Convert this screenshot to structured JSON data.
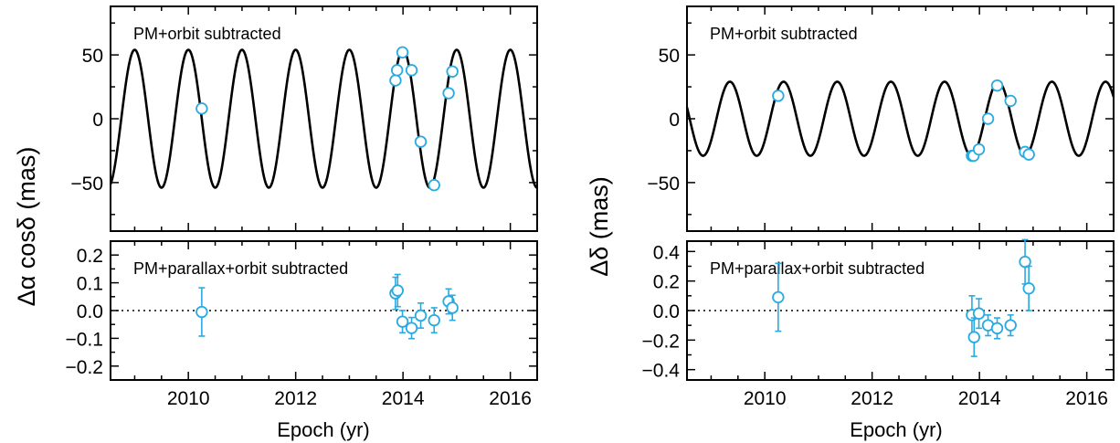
{
  "figure": {
    "left": {
      "ylabel": "Δα cosδ (mas)",
      "xlabel": "Epoch (yr)"
    },
    "right": {
      "ylabel": "Δδ (mas)",
      "xlabel": "Epoch (yr)"
    }
  },
  "chart_data": [
    {
      "type": "line",
      "panel": "left-top",
      "annotation": "PM+orbit subtracted",
      "xlim": [
        2008.55,
        2016.5
      ],
      "ylim": [
        -88,
        88
      ],
      "xticks": [
        2010,
        2012,
        2014,
        2016
      ],
      "yticks": [
        -50,
        0,
        50
      ],
      "ytick_labels": [
        "−50",
        "0",
        "50"
      ],
      "model": {
        "amplitude": 54,
        "period": 1.0,
        "phase_peak": 2009.0
      },
      "series": [
        {
          "kind": "points",
          "marker": "open-circle",
          "color": "#29aae1",
          "x": [
            2010.25,
            2013.86,
            2013.89,
            2013.99,
            2014.16,
            2014.33,
            2014.58,
            2014.85,
            2014.92
          ],
          "y": [
            8,
            30,
            38,
            52,
            38,
            -18,
            -52,
            20,
            37
          ]
        }
      ]
    },
    {
      "type": "scatter",
      "panel": "left-bottom",
      "annotation": "PM+parallax+orbit subtracted",
      "xlim": [
        2008.55,
        2016.5
      ],
      "ylim": [
        -0.25,
        0.25
      ],
      "xticks": [
        2010,
        2012,
        2014,
        2016
      ],
      "xtick_labels": [
        "2010",
        "2012",
        "2014",
        "2016"
      ],
      "yticks": [
        -0.2,
        -0.1,
        0.0,
        0.1,
        0.2
      ],
      "ytick_labels": [
        "−0.2",
        "−0.1",
        "0.0",
        "0.1",
        "0.2"
      ],
      "zero_line": "dotted",
      "series": [
        {
          "kind": "points-errorbars",
          "marker": "open-circle",
          "color": "#29aae1",
          "x": [
            2010.25,
            2013.86,
            2013.9,
            2013.99,
            2014.16,
            2014.33,
            2014.58,
            2014.85,
            2014.92
          ],
          "y": [
            -0.005,
            0.062,
            0.072,
            -0.04,
            -0.063,
            -0.018,
            -0.035,
            0.033,
            0.01
          ],
          "err": [
            0.087,
            0.058,
            0.058,
            0.04,
            0.038,
            0.045,
            0.045,
            0.045,
            0.045
          ]
        }
      ]
    },
    {
      "type": "line",
      "panel": "right-top",
      "annotation": "PM+orbit subtracted",
      "xlim": [
        2008.55,
        2016.5
      ],
      "ylim": [
        -88,
        88
      ],
      "xticks": [
        2010,
        2012,
        2014,
        2016
      ],
      "yticks": [
        -50,
        0,
        50
      ],
      "ytick_labels": [
        "−50",
        "0",
        "50"
      ],
      "model": {
        "amplitude": 29,
        "period": 1.0,
        "phase_peak": 2009.35
      },
      "series": [
        {
          "kind": "points",
          "marker": "open-circle",
          "color": "#29aae1",
          "x": [
            2010.25,
            2013.86,
            2013.89,
            2013.99,
            2014.16,
            2014.33,
            2014.58,
            2014.85,
            2014.92
          ],
          "y": [
            18,
            -29,
            -29,
            -24,
            0,
            26,
            14,
            -26,
            -28
          ]
        }
      ]
    },
    {
      "type": "scatter",
      "panel": "right-bottom",
      "annotation": "PM+parallax+orbit subtracted",
      "xlim": [
        2008.55,
        2016.5
      ],
      "ylim": [
        -0.47,
        0.47
      ],
      "xticks": [
        2010,
        2012,
        2014,
        2016
      ],
      "xtick_labels": [
        "2010",
        "2012",
        "2014",
        "2016"
      ],
      "yticks": [
        -0.4,
        -0.2,
        0.0,
        0.2,
        0.4
      ],
      "ytick_labels": [
        "−0.4",
        "−0.2",
        "0.0",
        "0.2",
        "0.4"
      ],
      "zero_line": "dotted",
      "series": [
        {
          "kind": "points-errorbars",
          "marker": "open-circle",
          "color": "#29aae1",
          "x": [
            2010.25,
            2013.86,
            2013.9,
            2013.99,
            2014.16,
            2014.33,
            2014.58,
            2014.85,
            2014.92
          ],
          "y": [
            0.09,
            -0.03,
            -0.18,
            -0.02,
            -0.1,
            -0.12,
            -0.1,
            0.33,
            0.15
          ],
          "err": [
            0.23,
            0.13,
            0.13,
            0.1,
            0.07,
            0.07,
            0.07,
            0.15,
            0.15
          ]
        }
      ]
    }
  ]
}
